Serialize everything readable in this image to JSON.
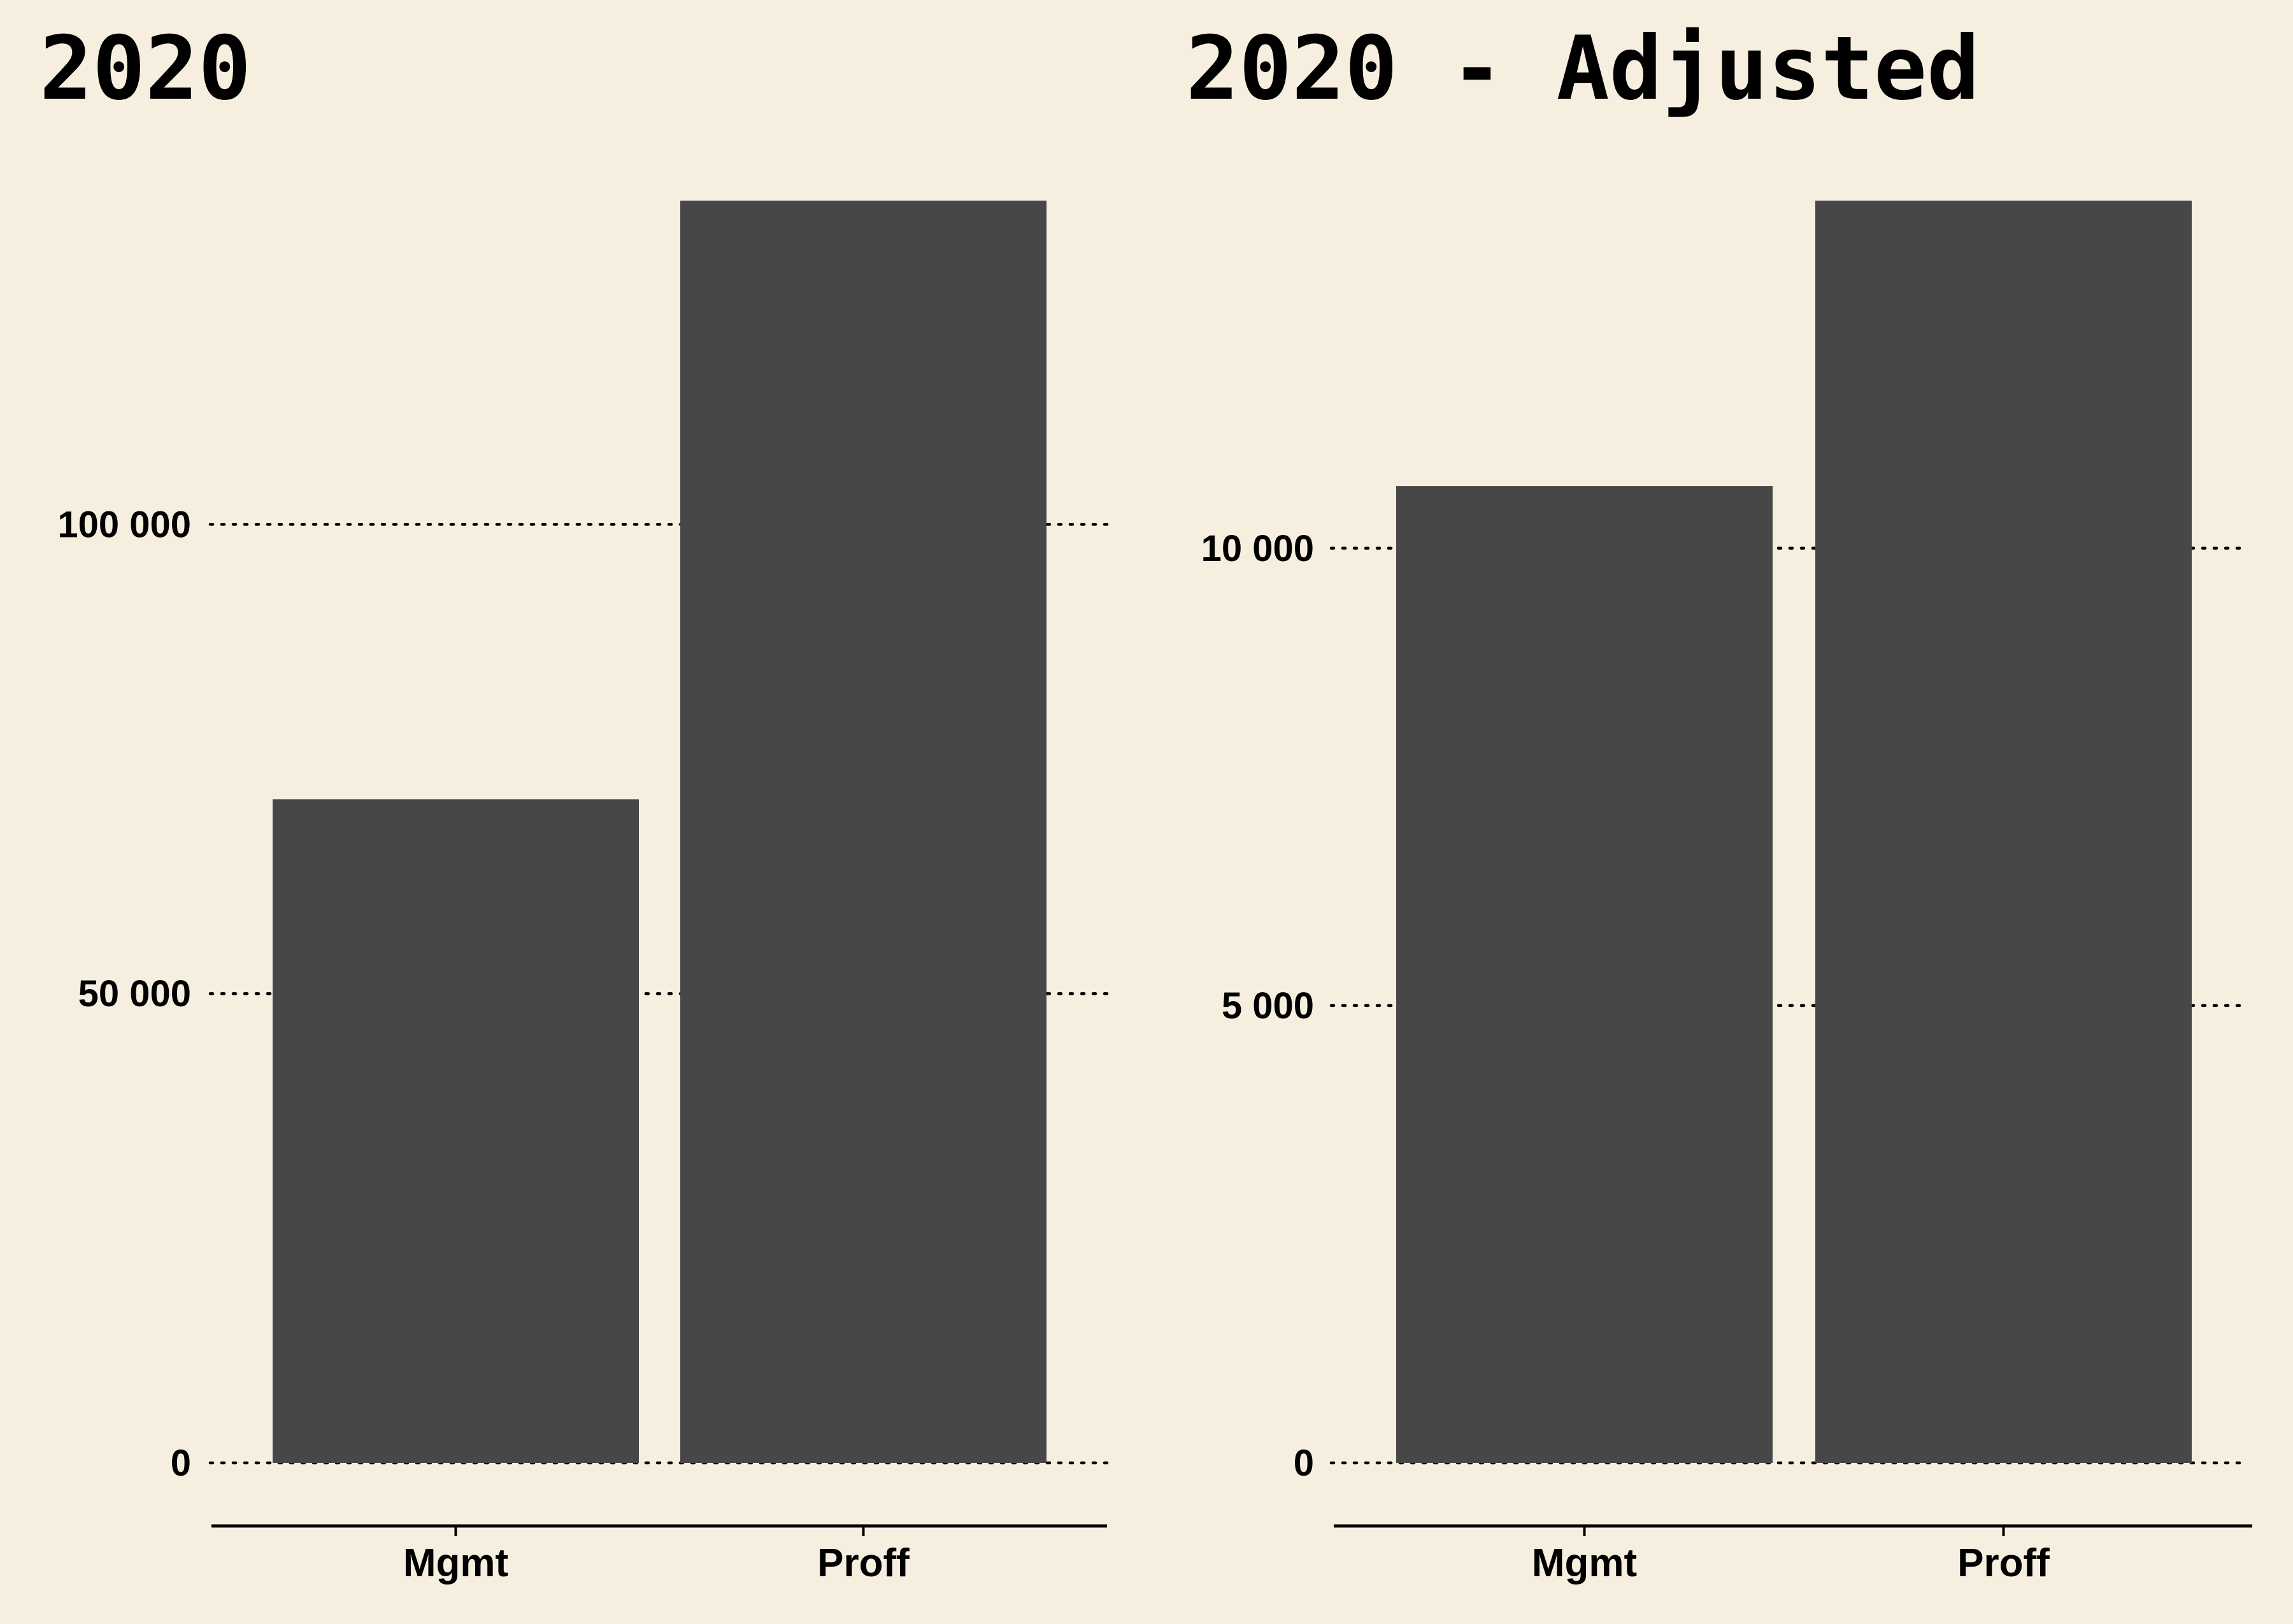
{
  "colors": {
    "background": "#f6efdf",
    "bar": "#474747",
    "grid": "#000000",
    "axis": "#000000"
  },
  "chart_data": [
    {
      "type": "bar",
      "title": "2020",
      "categories": [
        "Mgmt",
        "Proff"
      ],
      "values": [
        70700,
        134500
      ],
      "xlabel": "",
      "ylabel": "",
      "ylim": [
        0,
        134500
      ],
      "yticks": [
        0,
        50000,
        100000
      ],
      "ytick_labels": [
        "0",
        "50 000",
        "100 000"
      ],
      "grid": "horizontal dotted",
      "legend": "none"
    },
    {
      "type": "bar",
      "title": "2020 - Adjusted",
      "categories": [
        "Mgmt",
        "Proff"
      ],
      "values": [
        10680,
        13800
      ],
      "xlabel": "",
      "ylabel": "",
      "ylim": [
        0,
        13800
      ],
      "yticks": [
        0,
        5000,
        10000
      ],
      "ytick_labels": [
        "0",
        "5 000",
        "10 000"
      ],
      "grid": "horizontal dotted",
      "legend": "none"
    }
  ]
}
